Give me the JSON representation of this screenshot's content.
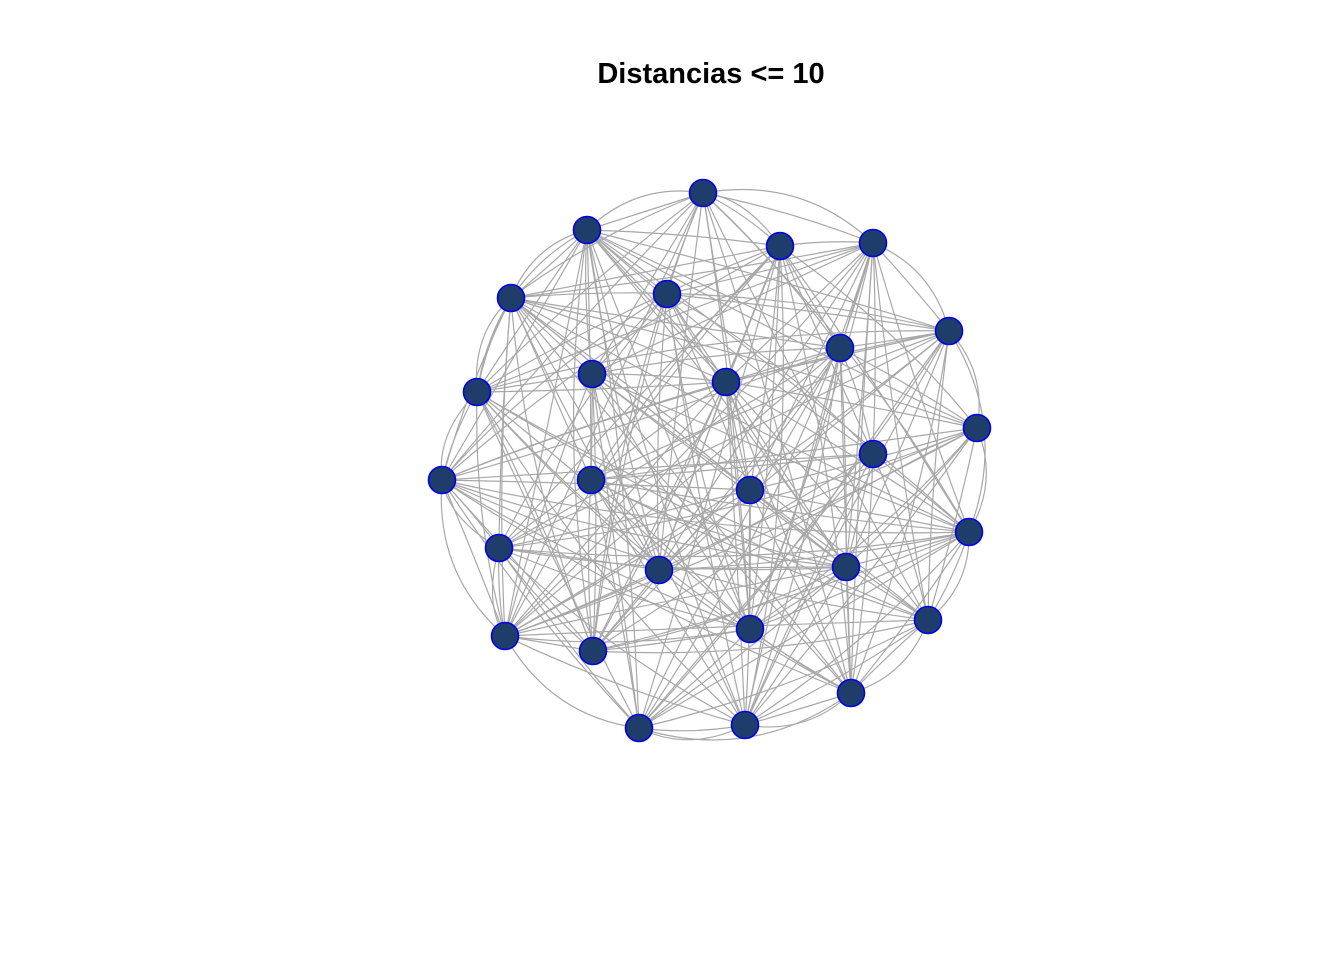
{
  "title": "Distancias <= 10",
  "graph": {
    "node_count": 27,
    "node_fill": "#1f3d6b",
    "node_border": "#0000ee",
    "edge_color": "#a8a8a8",
    "background": "#ffffff"
  }
}
